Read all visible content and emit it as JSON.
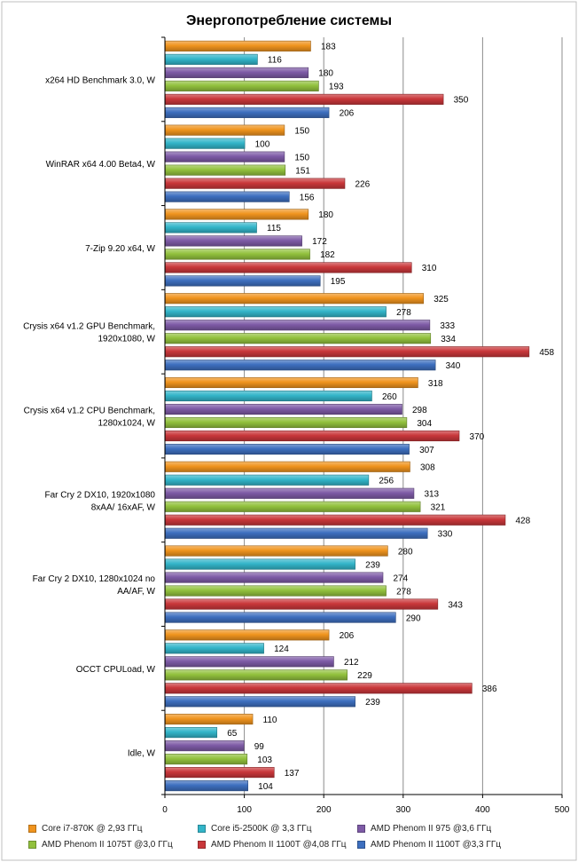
{
  "chart_data": {
    "type": "bar",
    "orientation": "horizontal",
    "title": "Энергопотребление системы",
    "xlabel": "",
    "ylabel": "",
    "xlim": [
      0,
      500
    ],
    "x_ticks": [
      0,
      100,
      200,
      300,
      400,
      500
    ],
    "grid": true,
    "legend_position": "bottom",
    "categories": [
      [
        "x264 HD Benchmark 3.0, W"
      ],
      [
        "WinRAR x64 4.00 Beta4, W"
      ],
      [
        "7-Zip 9.20 x64, W"
      ],
      [
        "Crysis x64 v1.2 GPU Benchmark,",
        "1920x1080, W"
      ],
      [
        "Crysis x64 v1.2 CPU Benchmark,",
        "1280x1024, W"
      ],
      [
        "Far Cry 2 DX10, 1920x1080",
        "8xAA/ 16xAF, W"
      ],
      [
        "Far Cry 2 DX10, 1280x1024 no",
        "AA/AF, W"
      ],
      [
        "OCCT CPULoad, W"
      ],
      [
        "Idle, W"
      ]
    ],
    "series": [
      {
        "name": "Core i7-870K @ 2,93 ГГц",
        "color": "#F0941E",
        "values": [
          183,
          150,
          180,
          325,
          318,
          308,
          280,
          206,
          110
        ]
      },
      {
        "name": "Core i5-2500K @ 3,3 ГГц",
        "color": "#33B5C9",
        "values": [
          116,
          100,
          115,
          278,
          260,
          256,
          239,
          124,
          65
        ]
      },
      {
        "name": "AMD Phenom II 975 @3,6 ГГц",
        "color": "#7E5BA6",
        "values": [
          180,
          150,
          172,
          333,
          298,
          313,
          274,
          212,
          99
        ]
      },
      {
        "name": "AMD Phenom II 1075T @3,0 ГГц",
        "color": "#92C13D",
        "values": [
          193,
          151,
          182,
          334,
          304,
          321,
          278,
          229,
          103
        ]
      },
      {
        "name": "AMD Phenom II 1100T @4,08 ГГц",
        "color": "#C9373A",
        "values": [
          350,
          226,
          310,
          458,
          370,
          428,
          343,
          386,
          137
        ]
      },
      {
        "name": "AMD Phenom II 1100T @3,3 ГГц",
        "color": "#3D6FBF",
        "values": [
          206,
          156,
          195,
          340,
          307,
          330,
          290,
          239,
          104
        ]
      }
    ]
  }
}
